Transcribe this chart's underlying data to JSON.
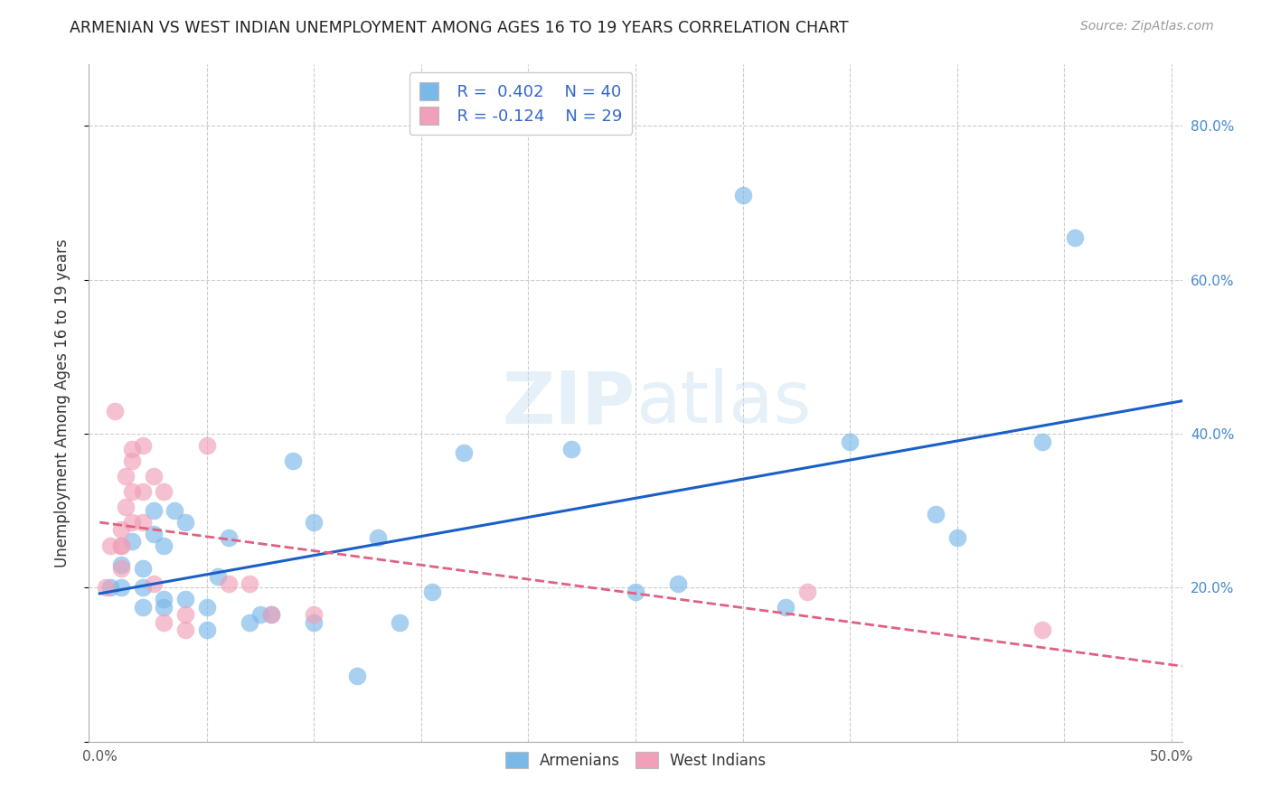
{
  "title": "ARMENIAN VS WEST INDIAN UNEMPLOYMENT AMONG AGES 16 TO 19 YEARS CORRELATION CHART",
  "source": "Source: ZipAtlas.com",
  "ylabel": "Unemployment Among Ages 16 to 19 years",
  "xlim": [
    -0.005,
    0.505
  ],
  "ylim": [
    0.0,
    0.88
  ],
  "armenian_R": 0.402,
  "armenian_N": 40,
  "west_indian_R": -0.124,
  "west_indian_N": 29,
  "armenian_color": "#7ab8e8",
  "west_indian_color": "#f0a0b8",
  "armenian_line_color": "#1a5fc8",
  "west_indian_line_color": "#e06080",
  "background_color": "#ffffff",
  "grid_color": "#cccccc",
  "watermark_zip": "ZIP",
  "watermark_atlas": "atlas",
  "armenian_x": [
    0.005,
    0.01,
    0.01,
    0.015,
    0.02,
    0.02,
    0.02,
    0.025,
    0.025,
    0.03,
    0.03,
    0.03,
    0.035,
    0.04,
    0.04,
    0.05,
    0.05,
    0.055,
    0.06,
    0.07,
    0.075,
    0.08,
    0.09,
    0.1,
    0.1,
    0.12,
    0.13,
    0.14,
    0.155,
    0.17,
    0.22,
    0.25,
    0.27,
    0.3,
    0.32,
    0.35,
    0.39,
    0.4,
    0.44,
    0.455
  ],
  "armenian_y": [
    0.2,
    0.2,
    0.23,
    0.26,
    0.175,
    0.2,
    0.225,
    0.27,
    0.3,
    0.175,
    0.185,
    0.255,
    0.3,
    0.185,
    0.285,
    0.145,
    0.175,
    0.215,
    0.265,
    0.155,
    0.165,
    0.165,
    0.365,
    0.155,
    0.285,
    0.085,
    0.265,
    0.155,
    0.195,
    0.375,
    0.38,
    0.195,
    0.205,
    0.71,
    0.175,
    0.39,
    0.295,
    0.265,
    0.39,
    0.655
  ],
  "west_indian_x": [
    0.003,
    0.005,
    0.007,
    0.01,
    0.01,
    0.01,
    0.01,
    0.012,
    0.012,
    0.015,
    0.015,
    0.015,
    0.015,
    0.02,
    0.02,
    0.02,
    0.025,
    0.025,
    0.03,
    0.03,
    0.04,
    0.04,
    0.05,
    0.06,
    0.07,
    0.08,
    0.1,
    0.33,
    0.44
  ],
  "west_indian_y": [
    0.2,
    0.255,
    0.43,
    0.225,
    0.255,
    0.255,
    0.275,
    0.305,
    0.345,
    0.285,
    0.325,
    0.365,
    0.38,
    0.285,
    0.325,
    0.385,
    0.205,
    0.345,
    0.155,
    0.325,
    0.145,
    0.165,
    0.385,
    0.205,
    0.205,
    0.165,
    0.165,
    0.195,
    0.145
  ]
}
